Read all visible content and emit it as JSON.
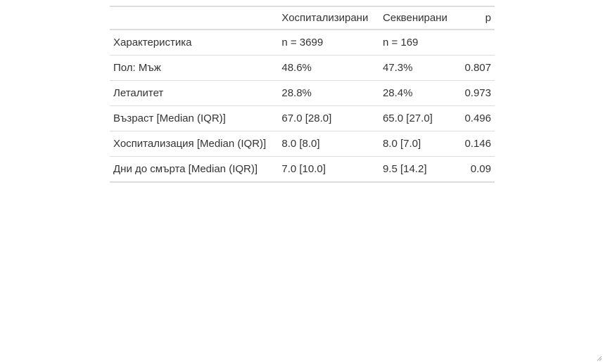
{
  "table": {
    "headers": [
      "",
      "Хоспитализирани",
      "Секвенирани",
      "p"
    ],
    "rows": [
      [
        "Характеристика",
        "n = 3699",
        "n = 169",
        ""
      ],
      [
        "Пол: Мъж",
        "48.6%",
        "47.3%",
        "0.807"
      ],
      [
        "Леталитет",
        "28.8%",
        "28.4%",
        "0.973"
      ],
      [
        "Възраст [Median (IQR)]",
        "67.0 [28.0]",
        "65.0 [27.0]",
        "0.496"
      ],
      [
        "Хоспитализация [Median (IQR)]",
        "8.0 [8.0]",
        "8.0 [7.0]",
        "0.146"
      ],
      [
        "Дни до смърта [Median (IQR)]",
        "7.0 [10.0]",
        "9.5 [14.2]",
        "0.09"
      ]
    ]
  }
}
